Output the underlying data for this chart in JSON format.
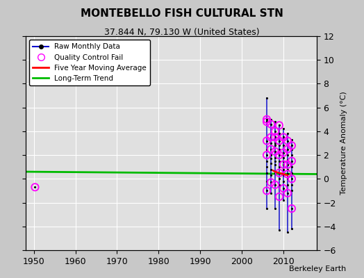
{
  "title": "MONTEBELLO FISH CULTURAL STN",
  "subtitle": "37.844 N, 79.130 W (United States)",
  "ylabel": "Temperature Anomaly (°C)",
  "attribution": "Berkeley Earth",
  "xlim": [
    1948,
    2018
  ],
  "ylim": [
    -6,
    12
  ],
  "yticks": [
    -6,
    -4,
    -2,
    0,
    2,
    4,
    6,
    8,
    10,
    12
  ],
  "xticks": [
    1950,
    1960,
    1970,
    1980,
    1990,
    2000,
    2010
  ],
  "fig_bg_color": "#c8c8c8",
  "plot_bg_color": "#e0e0e0",
  "grid_color": "white",
  "raw_color": "#0000cc",
  "raw_dot_color": "#000000",
  "qc_color": "#ff00ff",
  "five_year_color": "#ff0000",
  "trend_color": "#00bb00",
  "qc_fail_single": [
    [
      1950.3,
      -0.7
    ]
  ],
  "columns": [
    {
      "x": 2006.0,
      "values": [
        6.8,
        5.0,
        4.8,
        3.2,
        2.5,
        2.0,
        1.5,
        1.0,
        0.5,
        -0.2,
        -1.0,
        -2.5
      ]
    },
    {
      "x": 2007.0,
      "values": [
        5.0,
        4.6,
        3.5,
        3.0,
        2.5,
        2.0,
        1.7,
        1.3,
        0.8,
        0.3,
        -0.3,
        -1.2
      ]
    },
    {
      "x": 2008.0,
      "values": [
        4.8,
        4.0,
        3.5,
        3.0,
        2.8,
        2.3,
        1.8,
        1.5,
        1.2,
        0.5,
        -0.5,
        -2.5
      ]
    },
    {
      "x": 2009.0,
      "values": [
        4.5,
        3.8,
        3.2,
        2.8,
        2.5,
        2.0,
        1.5,
        1.0,
        0.5,
        0.0,
        -0.5,
        -4.3
      ]
    },
    {
      "x": 2010.0,
      "values": [
        4.2,
        3.5,
        2.8,
        2.2,
        1.8,
        1.5,
        1.2,
        0.8,
        0.3,
        -0.2,
        -0.8,
        -1.8
      ]
    },
    {
      "x": 2011.0,
      "values": [
        3.8,
        3.2,
        2.5,
        2.0,
        1.6,
        1.2,
        0.8,
        0.4,
        0.0,
        -0.5,
        -1.2,
        -4.5
      ]
    },
    {
      "x": 2012.0,
      "values": [
        3.3,
        2.8,
        2.5,
        2.0,
        1.5,
        1.0,
        0.5,
        0.0,
        -0.5,
        -1.0,
        -2.5,
        -4.2
      ]
    }
  ],
  "qc_x": [
    2006.0,
    2006.0,
    2006.0,
    2006.0,
    2006.0,
    2007.0,
    2007.0,
    2007.0,
    2007.0,
    2008.0,
    2008.0,
    2008.0,
    2008.0,
    2009.0,
    2009.0,
    2009.0,
    2009.0,
    2009.0,
    2010.0,
    2010.0,
    2010.0,
    2010.0,
    2011.0,
    2011.0,
    2011.0,
    2011.0,
    2011.0,
    2012.0,
    2012.0,
    2012.0,
    2012.0
  ],
  "qc_y": [
    5.0,
    4.8,
    3.2,
    2.0,
    -1.0,
    4.6,
    3.5,
    2.5,
    -0.3,
    4.0,
    3.5,
    2.3,
    -0.5,
    4.5,
    3.2,
    2.0,
    0.5,
    -1.5,
    3.5,
    2.2,
    1.2,
    -0.8,
    3.2,
    2.5,
    1.2,
    0.4,
    -1.2,
    2.8,
    1.5,
    0.0,
    -2.5
  ],
  "five_year_x": [
    2007.5,
    2008.0,
    2008.5,
    2009.0,
    2009.5,
    2010.0,
    2010.5,
    2011.0
  ],
  "five_year_y": [
    0.7,
    0.6,
    0.55,
    0.5,
    0.45,
    0.4,
    0.35,
    0.3
  ],
  "trend_x": [
    1948,
    2018
  ],
  "trend_y": [
    0.6,
    0.4
  ]
}
